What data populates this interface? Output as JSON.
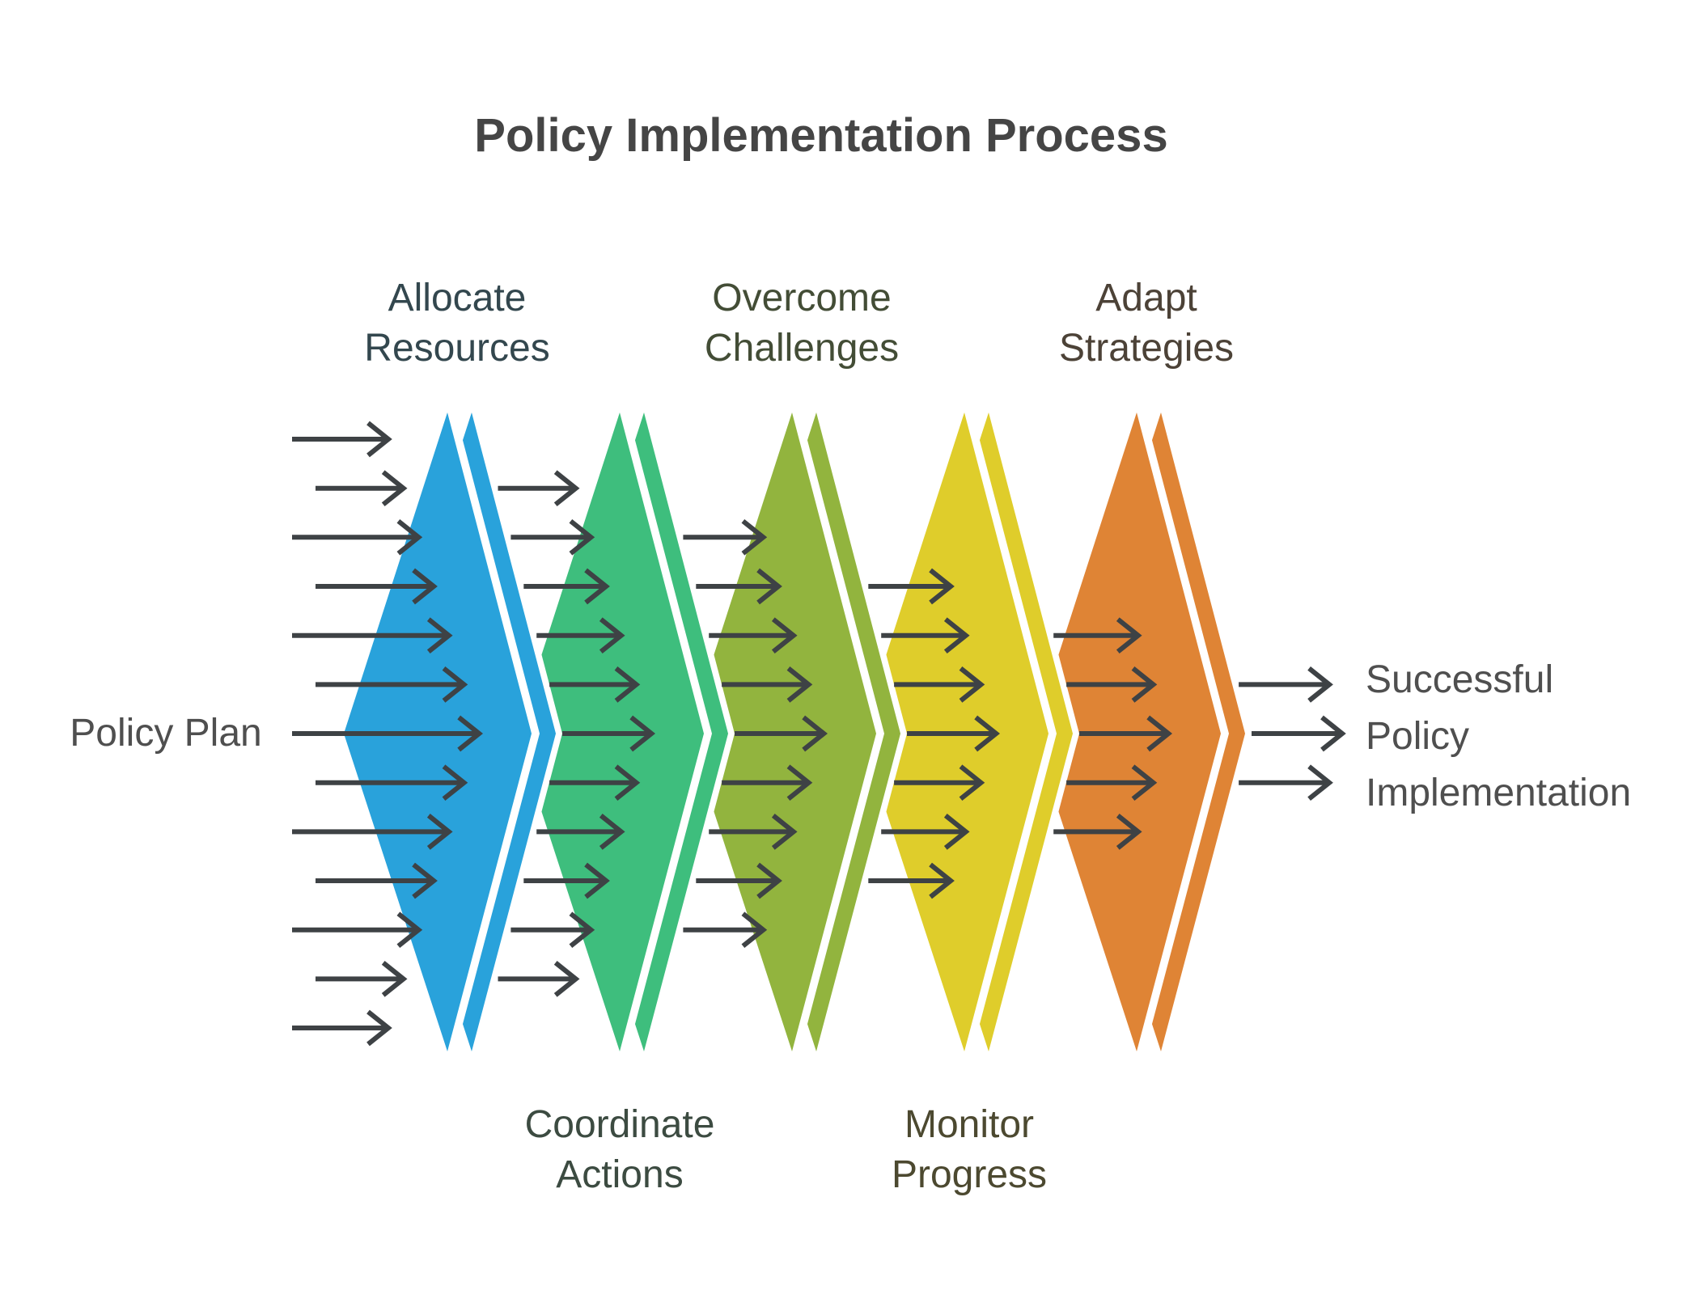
{
  "title": "Policy Implementation Process",
  "diagram": {
    "input_label": "Policy Plan",
    "output_label_lines": [
      "Successful",
      "Policy",
      "Implementation"
    ],
    "stages": [
      {
        "name": "allocate-resources",
        "label_lines": [
          "Allocate",
          "Resources"
        ],
        "label_position": "top",
        "color": "#29A2DB",
        "label_color": "#33474E",
        "incoming_arrows": 13
      },
      {
        "name": "coordinate-actions",
        "label_lines": [
          "Coordinate",
          "Actions"
        ],
        "label_position": "bottom",
        "color": "#3EBE7D",
        "label_color": "#3C4B41",
        "incoming_arrows": 11
      },
      {
        "name": "overcome-challenges",
        "label_lines": [
          "Overcome",
          "Challenges"
        ],
        "label_position": "top",
        "color": "#92B43E",
        "label_color": "#434D36",
        "incoming_arrows": 9
      },
      {
        "name": "monitor-progress",
        "label_lines": [
          "Monitor",
          "Progress"
        ],
        "label_position": "bottom",
        "color": "#DFCD2B",
        "label_color": "#4C4930",
        "incoming_arrows": 7
      },
      {
        "name": "adapt-strategies",
        "label_lines": [
          "Adapt",
          "Strategies"
        ],
        "label_position": "top",
        "color": "#DF8435",
        "label_color": "#4C4237",
        "incoming_arrows": 5
      }
    ],
    "outgoing_arrows": 3,
    "arrow_color": "#3E4245",
    "background_color": "#FFFFFF",
    "text_color": "#4F4F4F",
    "title_color": "#454545"
  }
}
